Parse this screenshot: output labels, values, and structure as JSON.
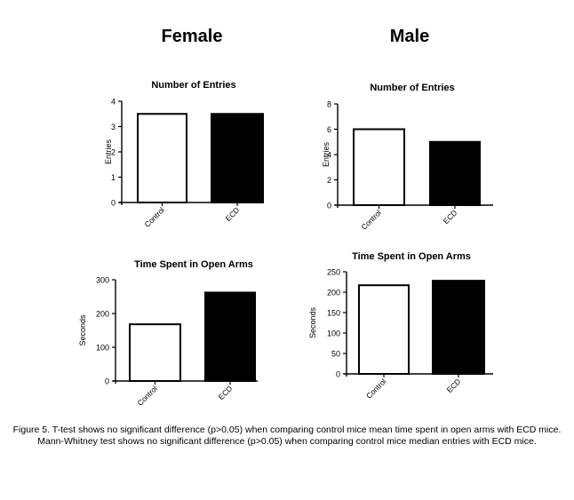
{
  "groups": {
    "left_title": "Female",
    "right_title": "Male"
  },
  "chart_data": [
    {
      "type": "bar",
      "panel": "Female",
      "title": "Number of Entries",
      "xlabel": "",
      "ylabel": "Entries",
      "categories": [
        "Control",
        "ECD"
      ],
      "values": [
        3.5,
        3.5
      ],
      "fills": [
        "#ffffff",
        "#000000"
      ],
      "ylim": [
        0,
        4
      ],
      "yticks": [
        0,
        1,
        2,
        3,
        4
      ]
    },
    {
      "type": "bar",
      "panel": "Male",
      "title": "Number of Entries",
      "xlabel": "",
      "ylabel": "Entries",
      "categories": [
        "Control",
        "ECD"
      ],
      "values": [
        6,
        5
      ],
      "fills": [
        "#ffffff",
        "#000000"
      ],
      "ylim": [
        0,
        8
      ],
      "yticks": [
        0,
        2,
        4,
        6,
        8
      ]
    },
    {
      "type": "bar",
      "panel": "Female",
      "title": "Time Spent in Open Arms",
      "xlabel": "",
      "ylabel": "Seconds",
      "categories": [
        "Control",
        "ECD"
      ],
      "values": [
        168,
        262
      ],
      "fills": [
        "#ffffff",
        "#000000"
      ],
      "ylim": [
        0,
        300
      ],
      "yticks": [
        0,
        100,
        200,
        300
      ]
    },
    {
      "type": "bar",
      "panel": "Male",
      "title": "Time Spent in Open Arms",
      "xlabel": "",
      "ylabel": "Seconds",
      "categories": [
        "Control",
        "ECD"
      ],
      "values": [
        217,
        228
      ],
      "fills": [
        "#ffffff",
        "#000000"
      ],
      "ylim": [
        0,
        250
      ],
      "yticks": [
        0,
        50,
        100,
        150,
        200,
        250
      ]
    }
  ],
  "caption": {
    "line1": "Figure 5. T-test shows no significant difference (p>0.05) when comparing control mice mean time spent in open arms with ECD mice.",
    "line2": "Mann-Whitney test shows no significant difference (p>0.05) when comparing control mice median entries with ECD mice."
  }
}
